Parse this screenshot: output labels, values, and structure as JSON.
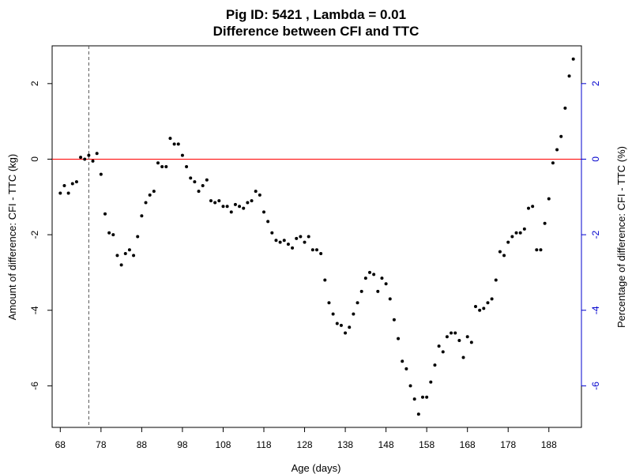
{
  "chart_data": {
    "type": "scatter",
    "title": "Pig ID: 5421 , Lambda = 0.01",
    "subtitle": "Difference between CFI and TTC",
    "xlabel": "Age (days)",
    "ylabel": "Amount of difference: CFI - TTC (kg)",
    "y2label": "Percentage of difference: CFI - TTC (%)",
    "xlim": [
      66,
      196
    ],
    "ylim": [
      -7.1,
      3.0
    ],
    "y2lim": [
      -7.1,
      3.0
    ],
    "xticks": [
      68,
      78,
      88,
      98,
      108,
      118,
      128,
      138,
      148,
      158,
      168,
      178,
      188
    ],
    "yticks": [
      -6,
      -4,
      -2,
      0,
      2
    ],
    "y2ticks": [
      -6,
      -4,
      -2,
      0,
      2
    ],
    "reference_hline": 0,
    "reference_vline": 75,
    "colors": {
      "points": "#000000",
      "hline": "#ff0000",
      "vline": "#555555",
      "right_axis": "#0000cd",
      "frame": "#000000"
    },
    "points": [
      {
        "x": 68,
        "y": -0.9
      },
      {
        "x": 69,
        "y": -0.7
      },
      {
        "x": 70,
        "y": -0.9
      },
      {
        "x": 71,
        "y": -0.65
      },
      {
        "x": 72,
        "y": -0.6
      },
      {
        "x": 73,
        "y": 0.05
      },
      {
        "x": 74,
        "y": 0.0
      },
      {
        "x": 75,
        "y": 0.1
      },
      {
        "x": 76,
        "y": -0.05
      },
      {
        "x": 77,
        "y": 0.15
      },
      {
        "x": 78,
        "y": -0.4
      },
      {
        "x": 79,
        "y": -1.45
      },
      {
        "x": 80,
        "y": -1.95
      },
      {
        "x": 81,
        "y": -2.0
      },
      {
        "x": 82,
        "y": -2.55
      },
      {
        "x": 83,
        "y": -2.8
      },
      {
        "x": 84,
        "y": -2.5
      },
      {
        "x": 85,
        "y": -2.4
      },
      {
        "x": 86,
        "y": -2.55
      },
      {
        "x": 87,
        "y": -2.05
      },
      {
        "x": 88,
        "y": -1.5
      },
      {
        "x": 89,
        "y": -1.15
      },
      {
        "x": 90,
        "y": -0.95
      },
      {
        "x": 91,
        "y": -0.85
      },
      {
        "x": 92,
        "y": -0.1
      },
      {
        "x": 93,
        "y": -0.2
      },
      {
        "x": 94,
        "y": -0.2
      },
      {
        "x": 95,
        "y": 0.55
      },
      {
        "x": 96,
        "y": 0.4
      },
      {
        "x": 97,
        "y": 0.4
      },
      {
        "x": 98,
        "y": 0.1
      },
      {
        "x": 99,
        "y": -0.2
      },
      {
        "x": 100,
        "y": -0.5
      },
      {
        "x": 101,
        "y": -0.6
      },
      {
        "x": 102,
        "y": -0.85
      },
      {
        "x": 103,
        "y": -0.7
      },
      {
        "x": 104,
        "y": -0.55
      },
      {
        "x": 105,
        "y": -1.1
      },
      {
        "x": 106,
        "y": -1.15
      },
      {
        "x": 107,
        "y": -1.1
      },
      {
        "x": 108,
        "y": -1.25
      },
      {
        "x": 109,
        "y": -1.25
      },
      {
        "x": 110,
        "y": -1.4
      },
      {
        "x": 111,
        "y": -1.2
      },
      {
        "x": 112,
        "y": -1.25
      },
      {
        "x": 113,
        "y": -1.3
      },
      {
        "x": 114,
        "y": -1.15
      },
      {
        "x": 115,
        "y": -1.1
      },
      {
        "x": 116,
        "y": -0.85
      },
      {
        "x": 117,
        "y": -0.95
      },
      {
        "x": 118,
        "y": -1.4
      },
      {
        "x": 119,
        "y": -1.65
      },
      {
        "x": 120,
        "y": -1.95
      },
      {
        "x": 121,
        "y": -2.15
      },
      {
        "x": 122,
        "y": -2.2
      },
      {
        "x": 123,
        "y": -2.15
      },
      {
        "x": 124,
        "y": -2.25
      },
      {
        "x": 125,
        "y": -2.35
      },
      {
        "x": 126,
        "y": -2.1
      },
      {
        "x": 127,
        "y": -2.05
      },
      {
        "x": 128,
        "y": -2.2
      },
      {
        "x": 129,
        "y": -2.05
      },
      {
        "x": 130,
        "y": -2.4
      },
      {
        "x": 131,
        "y": -2.4
      },
      {
        "x": 132,
        "y": -2.5
      },
      {
        "x": 133,
        "y": -3.2
      },
      {
        "x": 134,
        "y": -3.8
      },
      {
        "x": 135,
        "y": -4.1
      },
      {
        "x": 136,
        "y": -4.35
      },
      {
        "x": 137,
        "y": -4.4
      },
      {
        "x": 138,
        "y": -4.6
      },
      {
        "x": 139,
        "y": -4.45
      },
      {
        "x": 140,
        "y": -4.1
      },
      {
        "x": 141,
        "y": -3.8
      },
      {
        "x": 142,
        "y": -3.5
      },
      {
        "x": 143,
        "y": -3.15
      },
      {
        "x": 144,
        "y": -3.0
      },
      {
        "x": 145,
        "y": -3.05
      },
      {
        "x": 146,
        "y": -3.5
      },
      {
        "x": 147,
        "y": -3.15
      },
      {
        "x": 148,
        "y": -3.3
      },
      {
        "x": 149,
        "y": -3.7
      },
      {
        "x": 150,
        "y": -4.25
      },
      {
        "x": 151,
        "y": -4.75
      },
      {
        "x": 152,
        "y": -5.35
      },
      {
        "x": 153,
        "y": -5.55
      },
      {
        "x": 154,
        "y": -6.0
      },
      {
        "x": 155,
        "y": -6.35
      },
      {
        "x": 156,
        "y": -6.75
      },
      {
        "x": 157,
        "y": -6.3
      },
      {
        "x": 158,
        "y": -6.3
      },
      {
        "x": 159,
        "y": -5.9
      },
      {
        "x": 160,
        "y": -5.45
      },
      {
        "x": 161,
        "y": -4.95
      },
      {
        "x": 162,
        "y": -5.1
      },
      {
        "x": 163,
        "y": -4.7
      },
      {
        "x": 164,
        "y": -4.6
      },
      {
        "x": 165,
        "y": -4.6
      },
      {
        "x": 166,
        "y": -4.8
      },
      {
        "x": 167,
        "y": -5.25
      },
      {
        "x": 168,
        "y": -4.7
      },
      {
        "x": 169,
        "y": -4.85
      },
      {
        "x": 170,
        "y": -3.9
      },
      {
        "x": 171,
        "y": -4.0
      },
      {
        "x": 172,
        "y": -3.95
      },
      {
        "x": 173,
        "y": -3.8
      },
      {
        "x": 174,
        "y": -3.7
      },
      {
        "x": 175,
        "y": -3.2
      },
      {
        "x": 176,
        "y": -2.45
      },
      {
        "x": 177,
        "y": -2.55
      },
      {
        "x": 178,
        "y": -2.2
      },
      {
        "x": 179,
        "y": -2.05
      },
      {
        "x": 180,
        "y": -1.95
      },
      {
        "x": 181,
        "y": -1.95
      },
      {
        "x": 182,
        "y": -1.85
      },
      {
        "x": 183,
        "y": -1.3
      },
      {
        "x": 184,
        "y": -1.25
      },
      {
        "x": 185,
        "y": -2.4
      },
      {
        "x": 186,
        "y": -2.4
      },
      {
        "x": 187,
        "y": -1.7
      },
      {
        "x": 188,
        "y": -1.05
      },
      {
        "x": 189,
        "y": -0.1
      },
      {
        "x": 190,
        "y": 0.25
      },
      {
        "x": 191,
        "y": 0.6
      },
      {
        "x": 192,
        "y": 1.35
      },
      {
        "x": 193,
        "y": 2.2
      },
      {
        "x": 194,
        "y": 2.65
      }
    ]
  }
}
